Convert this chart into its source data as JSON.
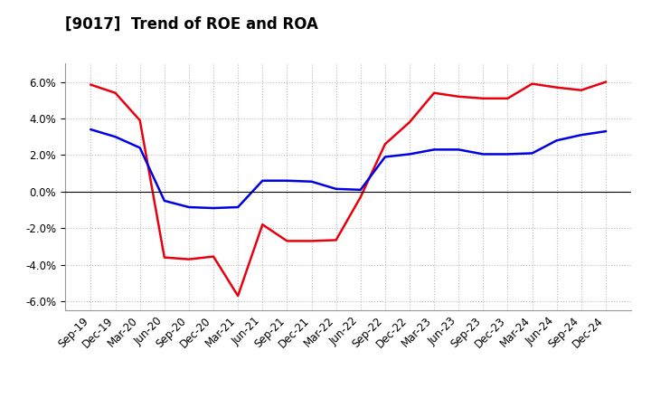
{
  "title": "[9017]  Trend of ROE and ROA",
  "x_labels": [
    "Sep-19",
    "Dec-19",
    "Mar-20",
    "Jun-20",
    "Sep-20",
    "Dec-20",
    "Mar-21",
    "Jun-21",
    "Sep-21",
    "Dec-21",
    "Mar-22",
    "Jun-22",
    "Sep-22",
    "Dec-22",
    "Mar-23",
    "Jun-23",
    "Sep-23",
    "Dec-23",
    "Mar-24",
    "Jun-24",
    "Sep-24",
    "Dec-24"
  ],
  "roe": [
    5.85,
    5.4,
    3.9,
    -3.6,
    -3.7,
    -3.55,
    -5.7,
    -1.8,
    -2.7,
    -2.7,
    -2.65,
    -0.3,
    2.6,
    3.8,
    5.4,
    5.2,
    5.1,
    5.1,
    5.9,
    5.7,
    5.55,
    6.0
  ],
  "roa": [
    3.4,
    3.0,
    2.4,
    -0.5,
    -0.85,
    -0.9,
    -0.85,
    0.6,
    0.6,
    0.55,
    0.15,
    0.1,
    1.9,
    2.05,
    2.3,
    2.3,
    2.05,
    2.05,
    2.1,
    2.8,
    3.1,
    3.3
  ],
  "roe_color": "#e8000d",
  "roa_color": "#0000e8",
  "ylim": [
    -6.5,
    7.0
  ],
  "yticks": [
    -6.0,
    -4.0,
    -2.0,
    0.0,
    2.0,
    4.0,
    6.0
  ],
  "background_color": "#ffffff",
  "grid_color": "#bbbbbb",
  "title_fontsize": 12,
  "legend_fontsize": 10,
  "tick_fontsize": 8.5
}
